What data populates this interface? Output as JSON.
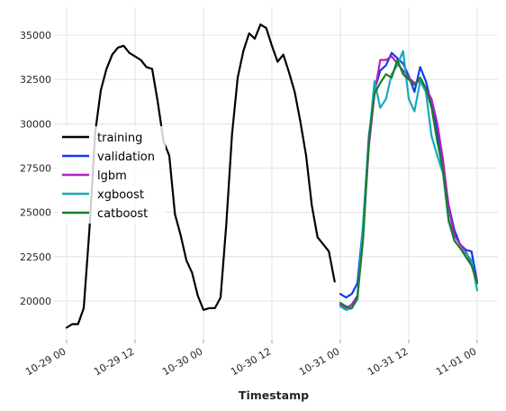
{
  "chart_data": {
    "type": "line",
    "xlabel": "Timestamp",
    "ylabel": "",
    "title": "",
    "x_ticks": [
      "10-29 00",
      "10-29 12",
      "10-30 00",
      "10-30 12",
      "10-31 00",
      "10-31 12",
      "11-01 00"
    ],
    "x_range_hours": [
      -4,
      48
    ],
    "y_ticks": [
      20000,
      22500,
      25000,
      27500,
      30000,
      32500,
      35000
    ],
    "ylim": [
      18200,
      36100
    ],
    "grid": true,
    "legend_position": "center-left",
    "series": [
      {
        "name": "training",
        "color": "#000000",
        "t_hours": [
          -24,
          -23,
          -22,
          -21,
          -20,
          -19,
          -18,
          -17,
          -16,
          -15,
          -14,
          -13,
          -12,
          -11,
          -10,
          -9,
          -8,
          -7,
          -6,
          -5,
          -4,
          -3,
          -2,
          -1,
          0,
          1,
          2,
          3,
          4,
          5,
          6,
          7,
          8,
          9,
          10,
          11,
          12,
          13,
          14,
          15,
          16,
          17,
          18,
          19,
          20,
          21,
          22,
          23
        ],
        "values": [
          18500,
          18700,
          18700,
          19600,
          24000,
          29500,
          31900,
          33100,
          33900,
          34300,
          34400,
          34000,
          33800,
          33600,
          33200,
          33100,
          31200,
          29000,
          28200,
          24900,
          23700,
          22300,
          21600,
          20300,
          19500,
          19600,
          19600,
          20200,
          24300,
          29400,
          32600,
          34100,
          35100,
          34800,
          35600,
          35400,
          34400,
          33500,
          33900,
          32900,
          31800,
          30100,
          28200,
          25400,
          23600,
          23200,
          22800,
          21100
        ]
      },
      {
        "name": "validation",
        "color": "#0b3ee8",
        "t_hours": [
          24,
          25,
          26,
          27,
          28,
          29,
          30,
          31,
          32,
          33,
          34,
          35,
          36,
          37,
          38,
          39,
          40,
          41,
          42,
          43,
          44,
          45,
          46,
          47,
          48
        ],
        "values": [
          20400,
          20200,
          20400,
          21000,
          24300,
          29300,
          31900,
          33000,
          33300,
          34000,
          33700,
          33400,
          32700,
          31800,
          33200,
          32400,
          31100,
          29500,
          27700,
          25400,
          24000,
          23200,
          22900,
          22800,
          21100
        ]
      },
      {
        "name": "lgbm",
        "color": "#b51fc2",
        "t_hours": [
          24,
          25,
          26,
          27,
          28,
          29,
          30,
          31,
          32,
          33,
          34,
          35,
          36,
          37,
          38,
          39,
          40,
          41,
          42,
          43,
          44,
          45,
          46,
          47,
          48
        ],
        "values": [
          19800,
          19600,
          19800,
          20300,
          23800,
          28700,
          31700,
          33600,
          33600,
          33800,
          33400,
          33000,
          32600,
          32300,
          32400,
          32000,
          31400,
          30000,
          28000,
          25300,
          23700,
          23200,
          22800,
          22100,
          21100
        ]
      },
      {
        "name": "xgboost",
        "color": "#17a9b8",
        "t_hours": [
          24,
          25,
          26,
          27,
          28,
          29,
          30,
          31,
          32,
          33,
          34,
          35,
          36,
          37,
          38,
          39,
          40,
          41,
          42,
          43,
          44,
          45,
          46,
          47,
          48
        ],
        "values": [
          19700,
          19500,
          19600,
          20100,
          24400,
          29100,
          32400,
          30900,
          31400,
          32800,
          33300,
          34100,
          31400,
          30700,
          32400,
          31800,
          29300,
          28200,
          27200,
          24500,
          23400,
          23000,
          22700,
          22300,
          20600
        ]
      },
      {
        "name": "catboost",
        "color": "#1b7d2b",
        "t_hours": [
          24,
          25,
          26,
          27,
          28,
          29,
          30,
          31,
          32,
          33,
          34,
          35,
          36,
          37,
          38,
          39,
          40,
          41,
          42,
          43,
          44,
          45,
          46,
          47,
          48
        ],
        "values": [
          19900,
          19700,
          19600,
          20200,
          23500,
          29100,
          31700,
          32300,
          32800,
          32600,
          33600,
          32800,
          32500,
          32200,
          32600,
          32000,
          30900,
          29000,
          27400,
          24600,
          23400,
          23000,
          22500,
          22000,
          21000
        ]
      }
    ]
  }
}
